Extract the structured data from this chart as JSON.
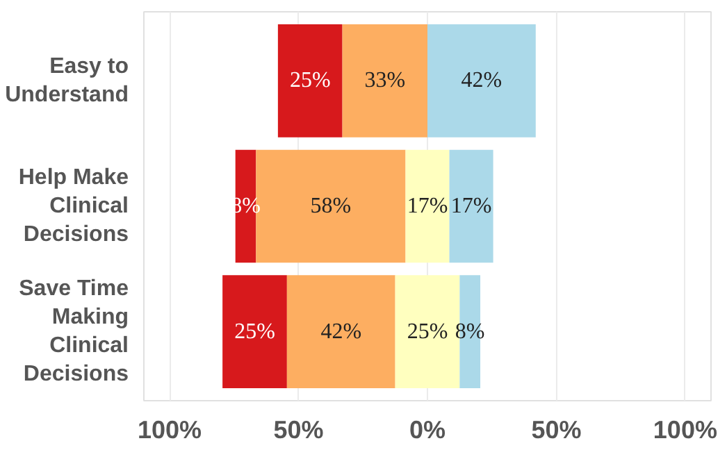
{
  "chart_data": {
    "type": "bar",
    "orientation": "horizontal",
    "categories": [
      "Easy to Understand",
      "Help Make Clinical Decisions",
      "Save Time Making Clinical Decisions"
    ],
    "series": [
      {
        "color": "#d7191c",
        "base": [
          -58,
          -74.5,
          -79.5
        ],
        "values": [
          25,
          8,
          25
        ],
        "value_labels": [
          "25%",
          "8%",
          "25%"
        ]
      },
      {
        "color": "#fdae61",
        "base": [
          -33,
          -66.5,
          -54.5
        ],
        "values": [
          33,
          58,
          42
        ],
        "value_labels": [
          "33%",
          "58%",
          "42%"
        ]
      },
      {
        "color": "#ffffbf",
        "base": [
          null,
          -8.5,
          -12.5
        ],
        "values": [
          null,
          17,
          25
        ],
        "value_labels": [
          null,
          "17%",
          "25%"
        ]
      },
      {
        "color": "#abd9e9",
        "base": [
          0,
          8.5,
          12.5
        ],
        "values": [
          42,
          17,
          8
        ],
        "value_labels": [
          "42%",
          "17%",
          "8%"
        ]
      }
    ],
    "xlim": [
      -110,
      110
    ],
    "xticks": [
      {
        "value": -100,
        "label": "100%"
      },
      {
        "value": -50,
        "label": "50%"
      },
      {
        "value": 0,
        "label": "0%"
      },
      {
        "value": 50,
        "label": "50%"
      },
      {
        "value": 100,
        "label": "100%"
      }
    ],
    "grid": "x"
  }
}
